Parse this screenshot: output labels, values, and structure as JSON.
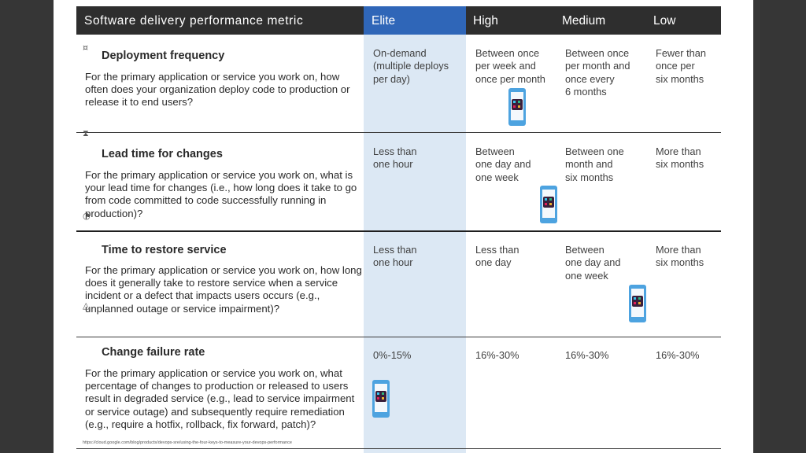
{
  "header": {
    "metric_col": "Software delivery performance metric",
    "elite": "Elite",
    "high": "High",
    "medium": "Medium",
    "low": "Low"
  },
  "rows": [
    {
      "title": "Deployment frequency",
      "description": "For the primary application or service you work on, how often does your organization deploy code to production or release it to end users?",
      "elite": "On-demand\n(multiple deploys\nper day)",
      "high": "Between once\nper week and\nonce per month",
      "medium": "Between once\nper month and\nonce every\n6 months",
      "low": "Fewer than\nonce per\nsix months"
    },
    {
      "title": "Lead time for changes",
      "description": "For the primary application or service you work on, what is your lead time for changes (i.e., how long does it take to go from code committed to code successfully running in production)?",
      "elite": "Less than\none hour",
      "high": "Between\none day and\none week",
      "medium": "Between one\nmonth and\nsix months",
      "low": "More than\nsix months"
    },
    {
      "title": "Time to restore service",
      "description": "For the primary application or service you work on, how long does it generally take to restore service when a service incident or a defect that impacts users occurs (e.g., unplanned outage or service impairment)?",
      "elite": "Less than\none hour",
      "high": "Less than\none day",
      "medium": "Between\none day and\none week",
      "low": "More than\nsix months"
    },
    {
      "title": "Change failure rate",
      "description": "For the primary application or service you work on, what percentage of changes to production or released to users result in degraded service (e.g., lead to service impairment or service outage) and subsequently require remediation (e.g., require a hotfix, rollback, fix forward, patch)?",
      "elite": "0%-15%",
      "high": "16%-30%",
      "medium": "16%-30%",
      "low": "16%-30%"
    }
  ],
  "footer": "https://cloud.google.com/blog/products/devops-sre/using-the-four-keys-to-measure-your-devops-performance",
  "icons": {
    "phone": "smartphone-icon",
    "app": "slack-app-icon"
  },
  "colors": {
    "header_bg": "#2e2e2e",
    "elite_header": "#2f66b8",
    "elite_column": "#dce8f4",
    "phone": "#4da3e0"
  }
}
